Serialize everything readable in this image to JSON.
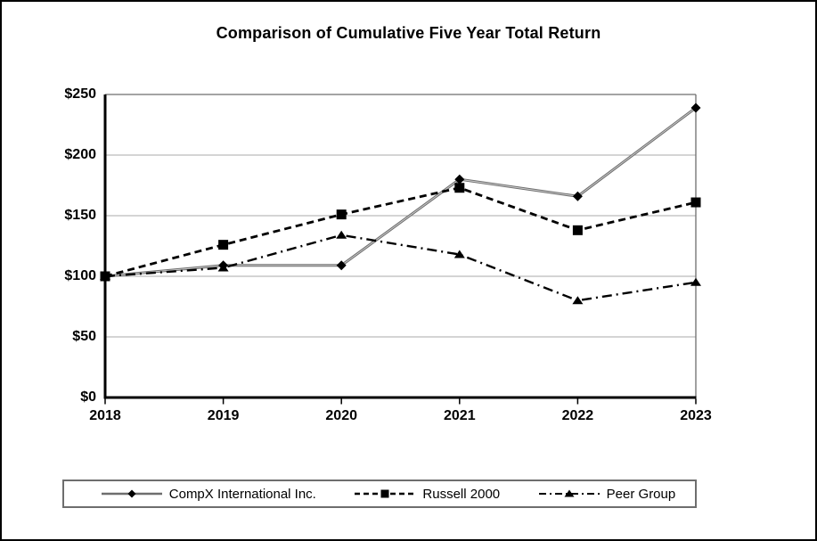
{
  "chart_data": {
    "type": "line",
    "title": "Comparison of Cumulative Five Year Total Return",
    "x": [
      "2018",
      "2019",
      "2020",
      "2021",
      "2022",
      "2023"
    ],
    "xlabel": "",
    "ylabel": "",
    "ylim": [
      0,
      250
    ],
    "yticks": [
      {
        "value": 0,
        "label": "$0"
      },
      {
        "value": 50,
        "label": "$50"
      },
      {
        "value": 100,
        "label": "$100"
      },
      {
        "value": 150,
        "label": "$150"
      },
      {
        "value": 200,
        "label": "$200"
      },
      {
        "value": 250,
        "label": "$250"
      }
    ],
    "grid": "horizontal",
    "legend_position": "bottom",
    "colors": {
      "compx_line": "#6e6e6e",
      "compx_line_core": "#c8c8c8",
      "black_series": "#000000",
      "gridline": "#a8a8a8",
      "plot_border": "#6e6e6e",
      "axis": "#000000"
    },
    "series": [
      {
        "name": "CompX International Inc.",
        "line": "solid",
        "marker": "diamond",
        "color": "#6e6e6e",
        "marker_color": "#000000",
        "values": [
          100,
          109,
          109,
          180,
          166,
          239
        ]
      },
      {
        "name": "Russell 2000",
        "line": "dashed",
        "marker": "square",
        "color": "#000000",
        "marker_color": "#000000",
        "values": [
          100,
          126,
          151,
          173,
          138,
          161
        ]
      },
      {
        "name": "Peer Group",
        "line": "dashdot",
        "marker": "triangle",
        "color": "#000000",
        "marker_color": "#000000",
        "values": [
          100,
          107,
          134,
          118,
          80,
          95
        ]
      }
    ]
  }
}
